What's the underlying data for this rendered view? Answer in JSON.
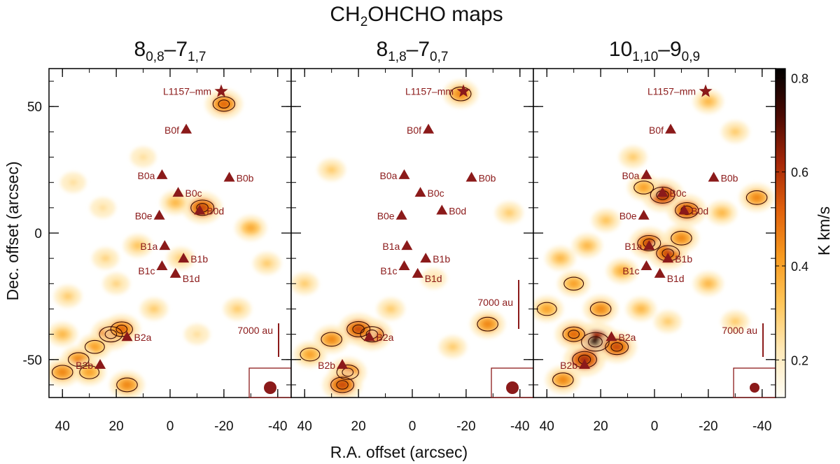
{
  "figure": {
    "title": {
      "main": "CH",
      "sub1": "2",
      "mid": "OHCHO maps"
    },
    "xlabel": "R.A. offset (arcsec)",
    "ylabel": "Dec. offset (arcsec)"
  },
  "panels": [
    {
      "label": {
        "a": "8",
        "a_sub": "0,8",
        "b": "–7",
        "b_sub": "1,7"
      },
      "scale_text": "7000 au"
    },
    {
      "label": {
        "a": "8",
        "a_sub": "1,8",
        "b": "–7",
        "b_sub": "0,7"
      },
      "scale_text": "7000 au"
    },
    {
      "label": {
        "a": "10",
        "a_sub": "1,10",
        "b": "–9",
        "b_sub": "0,9"
      },
      "scale_text": "7000 au"
    }
  ],
  "colorbar": {
    "label": "K km/s",
    "ticks": [
      "0.8",
      "0.6",
      "0.4",
      "0.2"
    ],
    "tick_values": [
      0.8,
      0.6,
      0.4,
      0.2
    ],
    "range": [
      0.12,
      0.82
    ],
    "colors": [
      "#fffdf6",
      "#ffe9b8",
      "#ffc65a",
      "#f79a1f",
      "#e0600c",
      "#a52608",
      "#4a0a03",
      "#000000"
    ]
  },
  "chart_data": {
    "type": "heatmap",
    "xlim": [
      45,
      -45
    ],
    "ylim": [
      -65,
      65
    ],
    "x_ticks": [
      "40",
      "20",
      "0",
      "-20",
      "-40"
    ],
    "x_tick_values": [
      40,
      20,
      0,
      -20,
      -40
    ],
    "y_ticks": [
      "50",
      "0",
      "-50"
    ],
    "y_tick_values": [
      50,
      0,
      -50
    ],
    "sources": [
      {
        "name": "L1157–mm",
        "x": -19,
        "y": 56,
        "marker": "star"
      },
      {
        "name": "B0f",
        "x": -6,
        "y": 41,
        "marker": "triangle"
      },
      {
        "name": "B0a",
        "x": 3,
        "y": 23,
        "marker": "triangle"
      },
      {
        "name": "B0b",
        "x": -22,
        "y": 22,
        "marker": "triangle"
      },
      {
        "name": "B0c",
        "x": -3,
        "y": 16,
        "marker": "triangle"
      },
      {
        "name": "B0d",
        "x": -11,
        "y": 9,
        "marker": "triangle"
      },
      {
        "name": "B0e",
        "x": 4,
        "y": 7,
        "marker": "triangle"
      },
      {
        "name": "B1a",
        "x": 2,
        "y": -5,
        "marker": "triangle"
      },
      {
        "name": "B1b",
        "x": -5,
        "y": -10,
        "marker": "triangle"
      },
      {
        "name": "B1c",
        "x": 3,
        "y": -13,
        "marker": "triangle"
      },
      {
        "name": "B1d",
        "x": -2,
        "y": -16,
        "marker": "triangle"
      },
      {
        "name": "B2a",
        "x": 16,
        "y": -41,
        "marker": "triangle"
      },
      {
        "name": "B2b",
        "x": 26,
        "y": -52,
        "marker": "triangle"
      }
    ],
    "emission_blobs": [
      [
        {
          "x": 22,
          "y": -40,
          "v": 0.55
        },
        {
          "x": 18,
          "y": -38,
          "v": 0.5
        },
        {
          "x": 28,
          "y": -45,
          "v": 0.4
        },
        {
          "x": 34,
          "y": -50,
          "v": 0.45
        },
        {
          "x": 40,
          "y": -55,
          "v": 0.45
        },
        {
          "x": 30,
          "y": -55,
          "v": 0.4
        },
        {
          "x": 16,
          "y": -60,
          "v": 0.45
        },
        {
          "x": 38,
          "y": -25,
          "v": 0.3
        },
        {
          "x": 20,
          "y": -20,
          "v": 0.28
        },
        {
          "x": -4,
          "y": -10,
          "v": 0.3
        },
        {
          "x": -12,
          "y": 10,
          "v": 0.55
        },
        {
          "x": -2,
          "y": 12,
          "v": 0.35
        },
        {
          "x": -30,
          "y": 2,
          "v": 0.38
        },
        {
          "x": -20,
          "y": 51,
          "v": 0.5
        },
        {
          "x": 10,
          "y": 30,
          "v": 0.25
        },
        {
          "x": 12,
          "y": -5,
          "v": 0.32
        },
        {
          "x": 25,
          "y": 10,
          "v": 0.25
        },
        {
          "x": -36,
          "y": -12,
          "v": 0.3
        },
        {
          "x": 36,
          "y": 20,
          "v": 0.25
        },
        {
          "x": -25,
          "y": -30,
          "v": 0.3
        },
        {
          "x": 6,
          "y": -30,
          "v": 0.3
        },
        {
          "x": 24,
          "y": -10,
          "v": 0.28
        },
        {
          "x": -10,
          "y": -40,
          "v": 0.25
        },
        {
          "x": 40,
          "y": -40,
          "v": 0.35
        }
      ],
      [
        {
          "x": 15,
          "y": -40,
          "v": 0.55
        },
        {
          "x": 20,
          "y": -38,
          "v": 0.55
        },
        {
          "x": 30,
          "y": -42,
          "v": 0.45
        },
        {
          "x": 24,
          "y": -55,
          "v": 0.5
        },
        {
          "x": 26,
          "y": -60,
          "v": 0.55
        },
        {
          "x": 38,
          "y": -48,
          "v": 0.4
        },
        {
          "x": -28,
          "y": -36,
          "v": 0.45
        },
        {
          "x": -18,
          "y": 55,
          "v": 0.45
        },
        {
          "x": 8,
          "y": -30,
          "v": 0.3
        },
        {
          "x": -36,
          "y": 8,
          "v": 0.3
        },
        {
          "x": 30,
          "y": 25,
          "v": 0.3
        },
        {
          "x": -8,
          "y": -18,
          "v": 0.25
        },
        {
          "x": -15,
          "y": -45,
          "v": 0.3
        },
        {
          "x": 40,
          "y": -20,
          "v": 0.3
        }
      ],
      [
        {
          "x": 22,
          "y": -43,
          "v": 0.75
        },
        {
          "x": 26,
          "y": -50,
          "v": 0.6
        },
        {
          "x": 14,
          "y": -45,
          "v": 0.55
        },
        {
          "x": 30,
          "y": -40,
          "v": 0.5
        },
        {
          "x": 20,
          "y": -30,
          "v": 0.45
        },
        {
          "x": 34,
          "y": -58,
          "v": 0.45
        },
        {
          "x": -3,
          "y": 15,
          "v": 0.6
        },
        {
          "x": -12,
          "y": 9,
          "v": 0.55
        },
        {
          "x": 2,
          "y": -4,
          "v": 0.55
        },
        {
          "x": -5,
          "y": -8,
          "v": 0.55
        },
        {
          "x": -10,
          "y": -2,
          "v": 0.45
        },
        {
          "x": 4,
          "y": 18,
          "v": 0.4
        },
        {
          "x": -38,
          "y": 14,
          "v": 0.45
        },
        {
          "x": -25,
          "y": 8,
          "v": 0.35
        },
        {
          "x": 12,
          "y": -15,
          "v": 0.38
        },
        {
          "x": 30,
          "y": -20,
          "v": 0.4
        },
        {
          "x": 35,
          "y": -10,
          "v": 0.35
        },
        {
          "x": 18,
          "y": 5,
          "v": 0.32
        },
        {
          "x": -20,
          "y": -20,
          "v": 0.35
        },
        {
          "x": -30,
          "y": -35,
          "v": 0.3
        },
        {
          "x": 8,
          "y": 30,
          "v": 0.3
        },
        {
          "x": -30,
          "y": 40,
          "v": 0.3
        },
        {
          "x": 40,
          "y": -30,
          "v": 0.4
        },
        {
          "x": -20,
          "y": 52,
          "v": 0.35
        },
        {
          "x": 5,
          "y": -30,
          "v": 0.35
        },
        {
          "x": -5,
          "y": -35,
          "v": 0.3
        },
        {
          "x": 25,
          "y": -5,
          "v": 0.35
        }
      ]
    ]
  }
}
